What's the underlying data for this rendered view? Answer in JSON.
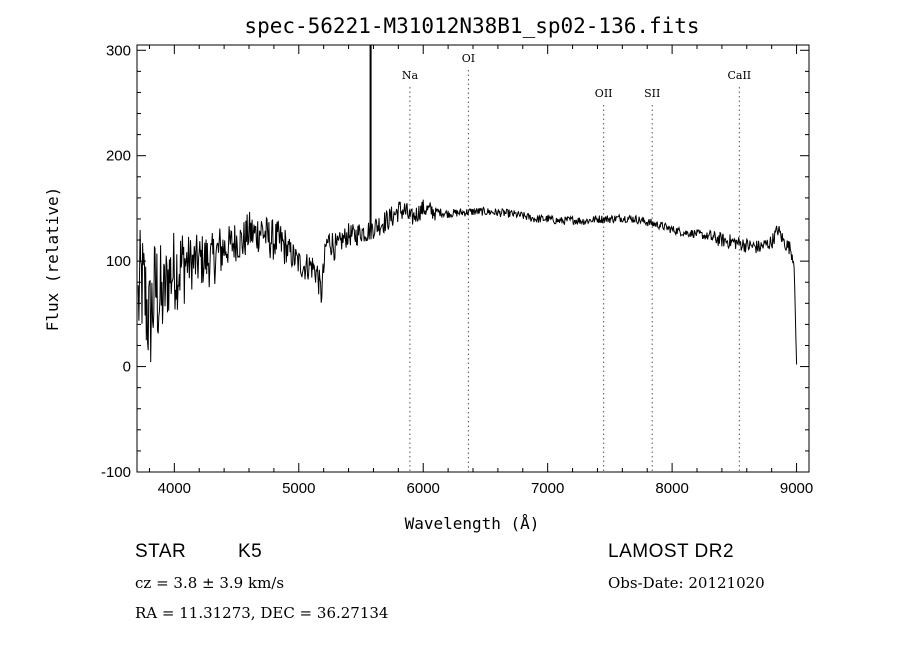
{
  "chart_data": {
    "type": "line",
    "title": "spec-56221-M31012N38B1_sp02-136.fits",
    "xlabel": "Wavelength (Å)",
    "ylabel": "Flux (relative)",
    "xlim": [
      3700,
      9100
    ],
    "ylim": [
      -100,
      305
    ],
    "x_ticks": [
      4000,
      5000,
      6000,
      7000,
      8000,
      9000
    ],
    "y_ticks": [
      -100,
      0,
      100,
      200,
      300
    ],
    "grid": false,
    "line_color": "#000000",
    "spectrum_anchors": [
      [
        3710,
        60
      ],
      [
        3730,
        80
      ],
      [
        3760,
        70
      ],
      [
        3800,
        40
      ],
      [
        3850,
        75
      ],
      [
        3900,
        60
      ],
      [
        3950,
        85
      ],
      [
        4000,
        92
      ],
      [
        4050,
        95
      ],
      [
        4100,
        100
      ],
      [
        4150,
        98
      ],
      [
        4200,
        100
      ],
      [
        4250,
        102
      ],
      [
        4300,
        100
      ],
      [
        4350,
        108
      ],
      [
        4400,
        112
      ],
      [
        4450,
        115
      ],
      [
        4500,
        120
      ],
      [
        4550,
        118
      ],
      [
        4600,
        128
      ],
      [
        4650,
        125
      ],
      [
        4700,
        130
      ],
      [
        4750,
        122
      ],
      [
        4800,
        120
      ],
      [
        4850,
        118
      ],
      [
        4900,
        112
      ],
      [
        4950,
        105
      ],
      [
        5000,
        98
      ],
      [
        5050,
        95
      ],
      [
        5100,
        96
      ],
      [
        5150,
        88
      ],
      [
        5180,
        68
      ],
      [
        5220,
        115
      ],
      [
        5250,
        120
      ],
      [
        5300,
        112
      ],
      [
        5350,
        120
      ],
      [
        5400,
        125
      ],
      [
        5450,
        124
      ],
      [
        5500,
        128
      ],
      [
        5550,
        128
      ],
      [
        5600,
        132
      ],
      [
        5650,
        135
      ],
      [
        5700,
        138
      ],
      [
        5750,
        142
      ],
      [
        5800,
        148
      ],
      [
        5850,
        148
      ],
      [
        5900,
        140
      ],
      [
        5950,
        145
      ],
      [
        6000,
        150
      ],
      [
        6050,
        148
      ],
      [
        6100,
        147
      ],
      [
        6200,
        145
      ],
      [
        6300,
        146
      ],
      [
        6400,
        147
      ],
      [
        6500,
        147
      ],
      [
        6600,
        146
      ],
      [
        6700,
        145
      ],
      [
        6800,
        143
      ],
      [
        6900,
        140
      ],
      [
        7000,
        140
      ],
      [
        7100,
        138
      ],
      [
        7200,
        139
      ],
      [
        7300,
        138
      ],
      [
        7400,
        140
      ],
      [
        7500,
        140
      ],
      [
        7600,
        141
      ],
      [
        7700,
        140
      ],
      [
        7800,
        137
      ],
      [
        7900,
        134
      ],
      [
        8000,
        130
      ],
      [
        8100,
        127
      ],
      [
        8200,
        126
      ],
      [
        8300,
        123
      ],
      [
        8400,
        120
      ],
      [
        8500,
        118
      ],
      [
        8600,
        115
      ],
      [
        8700,
        113
      ],
      [
        8800,
        118
      ],
      [
        8850,
        130
      ],
      [
        8900,
        118
      ],
      [
        8950,
        112
      ],
      [
        8980,
        100
      ],
      [
        9000,
        2
      ]
    ],
    "spike": {
      "x": 5577,
      "y_top": 305,
      "y_base": 135
    },
    "line_markers": [
      {
        "label": "Na",
        "x": 5893
      },
      {
        "label": "OI",
        "x": 6363
      },
      {
        "label": "OII",
        "x": 7450
      },
      {
        "label": "SII",
        "x": 7840
      },
      {
        "label": "CaII",
        "x": 8540
      }
    ]
  },
  "info": {
    "object_class": "STAR",
    "subclass": "K5",
    "cz": "cz = 3.8 ± 3.9 km/s",
    "coords": "RA =  11.31273, DEC =  36.27134",
    "survey": "LAMOST DR2",
    "obs_date": "Obs-Date: 20121020"
  }
}
